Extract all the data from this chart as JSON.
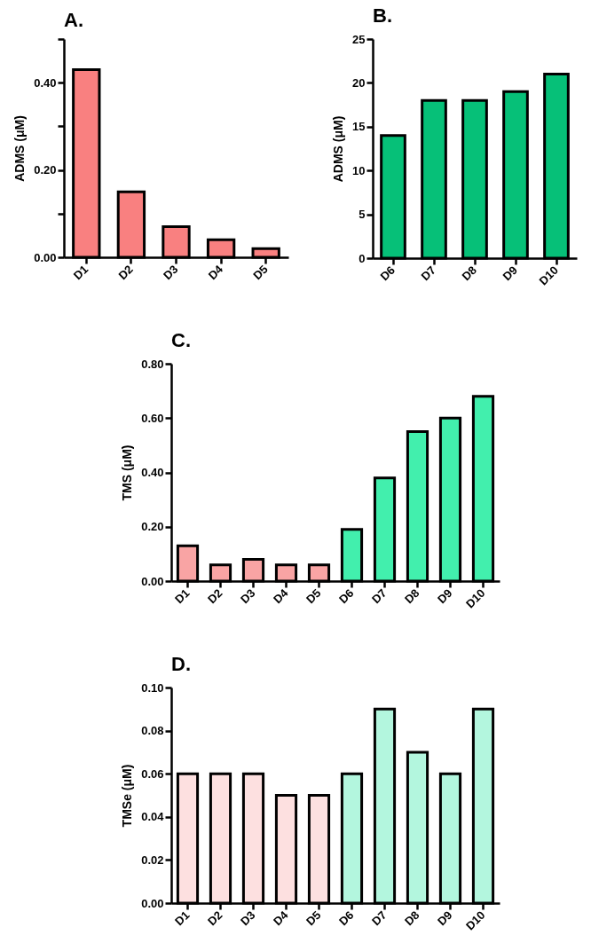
{
  "chart_data": [
    {
      "type": "bar",
      "title": "A.",
      "ylabel": "ADMS (μM)",
      "categories": [
        "D1",
        "D2",
        "D3",
        "D4",
        "D5"
      ],
      "values": [
        0.43,
        0.15,
        0.07,
        0.04,
        0.02
      ],
      "color": "#f98080",
      "ylim": [
        0,
        0.5
      ],
      "yticks": [
        {
          "value": 0,
          "label": "0.00"
        },
        {
          "value": 0.1,
          "label": null
        },
        {
          "value": 0.2,
          "label": "0.20"
        },
        {
          "value": 0.3,
          "label": null
        },
        {
          "value": 0.4,
          "label": "0.40"
        },
        {
          "value": 0.5,
          "label": null
        }
      ]
    },
    {
      "type": "bar",
      "title": "B.",
      "ylabel": "ADMS (μM)",
      "categories": [
        "D6",
        "D7",
        "D8",
        "D9",
        "D10"
      ],
      "values": [
        14,
        18,
        18,
        19,
        21
      ],
      "color": "#06c078",
      "ylim": [
        0,
        25
      ],
      "yticks": [
        0,
        5,
        10,
        15,
        20,
        25
      ]
    },
    {
      "type": "bar",
      "title": "C.",
      "ylabel": "TMS (μM)",
      "categories": [
        "D1",
        "D2",
        "D3",
        "D4",
        "D5",
        "D6",
        "D7",
        "D8",
        "D9",
        "D10"
      ],
      "values": [
        0.13,
        0.06,
        0.08,
        0.06,
        0.06,
        0.19,
        0.38,
        0.55,
        0.6,
        0.68
      ],
      "colors": [
        "#f9a4a4",
        "#f9a4a4",
        "#f9a4a4",
        "#f9a4a4",
        "#f9a4a4",
        "#42efad",
        "#42efad",
        "#42efad",
        "#42efad",
        "#42efad"
      ],
      "ylim": [
        0,
        0.8
      ],
      "yticks": [
        {
          "value": 0,
          "label": "0.00"
        },
        {
          "value": 0.2,
          "label": "0.20"
        },
        {
          "value": 0.4,
          "label": "0.40"
        },
        {
          "value": 0.6,
          "label": "0.60"
        },
        {
          "value": 0.8,
          "label": "0.80"
        }
      ]
    },
    {
      "type": "bar",
      "title": "D.",
      "ylabel": "TMSe (μM)",
      "categories": [
        "D1",
        "D2",
        "D3",
        "D4",
        "D5",
        "D6",
        "D7",
        "D8",
        "D9",
        "D10"
      ],
      "values": [
        0.06,
        0.06,
        0.06,
        0.05,
        0.05,
        0.06,
        0.09,
        0.07,
        0.06,
        0.09
      ],
      "colors": [
        "#fde0e0",
        "#fde0e0",
        "#fde0e0",
        "#fde0e0",
        "#fde0e0",
        "#b3f6de",
        "#b3f6de",
        "#b3f6de",
        "#b3f6de",
        "#b3f6de"
      ],
      "ylim": [
        0,
        0.1
      ],
      "yticks": [
        {
          "value": 0,
          "label": "0.00"
        },
        {
          "value": 0.02,
          "label": "0.02"
        },
        {
          "value": 0.04,
          "label": "0.04"
        },
        {
          "value": 0.06,
          "label": "0.06"
        },
        {
          "value": 0.08,
          "label": "0.08"
        },
        {
          "value": 0.1,
          "label": "0.10"
        }
      ]
    }
  ]
}
